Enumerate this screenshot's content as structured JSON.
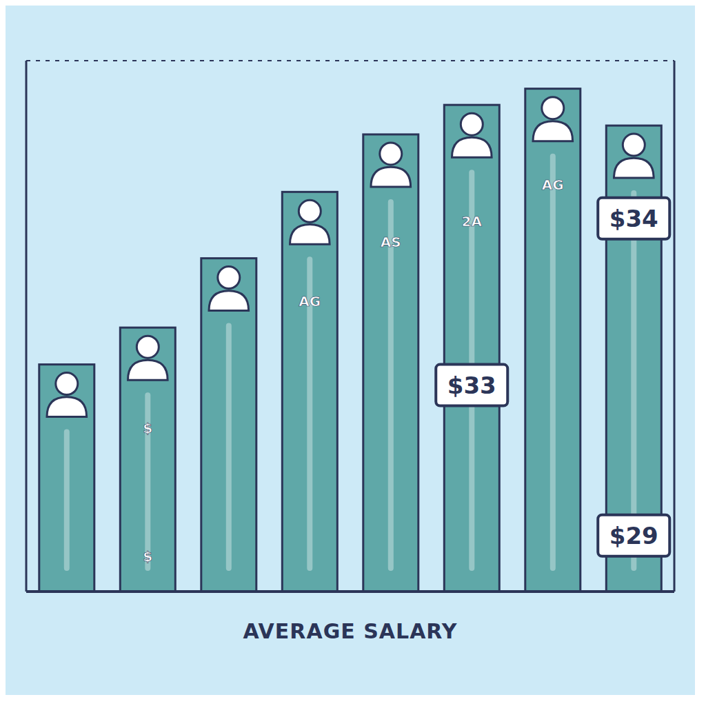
{
  "chart_data": {
    "type": "bar",
    "title": "AVERAGE SALARY",
    "categories": [
      null,
      null,
      null,
      null,
      null,
      null,
      null,
      null
    ],
    "values": [
      15.4,
      17.9,
      22.6,
      27.1,
      31,
      33,
      34.1,
      31.6
    ],
    "color": "#5fa8a8",
    "ylim": [
      0,
      36
    ],
    "yticks": [
      3.4,
      17.2,
      19,
      23.3,
      29.1
    ],
    "grid": true,
    "tick_labels": false,
    "annotations": [
      {
        "text": "$33",
        "category": 5,
        "y": 14
      },
      {
        "text": "$34",
        "category": 7,
        "y": 25.3
      },
      {
        "text": "$29",
        "category": 7,
        "y": 3.8
      }
    ],
    "bar_labels": [
      {
        "text": "$",
        "category": 1,
        "y": 11.1
      },
      {
        "text": "$",
        "category": 1,
        "y": 2.4
      },
      {
        "text": "AG",
        "category": 3,
        "y": 19.7
      },
      {
        "text": "AS",
        "category": 4,
        "y": 23.7
      },
      {
        "text": "2A",
        "category": 5,
        "y": 25.1
      },
      {
        "text": "AG",
        "category": 6,
        "y": 27.6
      }
    ]
  }
}
